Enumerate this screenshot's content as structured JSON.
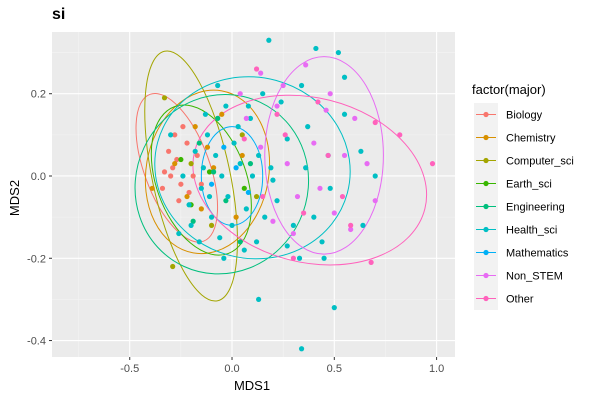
{
  "chart_data": {
    "type": "scatter",
    "title": "si",
    "xlabel": "MDS1",
    "ylabel": "MDS2",
    "xlim": [
      -0.88,
      1.09
    ],
    "ylim": [
      -0.44,
      0.35
    ],
    "x_ticks": [
      -0.5,
      0.0,
      0.5,
      1.0
    ],
    "x_tick_labels": [
      "-0.5",
      "0.0",
      "0.5",
      "1.0"
    ],
    "y_ticks": [
      -0.4,
      -0.2,
      0.0,
      0.2
    ],
    "y_tick_labels": [
      "-0.4",
      "-0.2",
      "0.0",
      "0.2"
    ],
    "grid": true,
    "legend_position": "right",
    "legend_title": "factor(major)",
    "colors": {
      "panel_bg": "#EBEBEB",
      "grid_major": "#FFFFFF",
      "grid_minor": "#F5F5F5"
    },
    "ellipses_shown": true,
    "series": [
      {
        "name": "Biology",
        "color": "#F8766D",
        "points": [
          [
            -0.31,
            0.06
          ],
          [
            -0.29,
            0.02
          ],
          [
            -0.27,
            0.04
          ],
          [
            -0.25,
            -0.02
          ],
          [
            -0.3,
            0.0
          ],
          [
            -0.22,
            0.08
          ],
          [
            -0.34,
            -0.03
          ],
          [
            -0.26,
            -0.06
          ],
          [
            -0.19,
            0.0
          ],
          [
            -0.28,
            0.1
          ],
          [
            -0.21,
            -0.04
          ],
          [
            -0.24,
            0.12
          ],
          [
            -0.33,
            0.01
          ],
          [
            -0.17,
            0.05
          ],
          [
            -0.15,
            -0.02
          ]
        ],
        "ellipse": {
          "cx": -0.27,
          "cy": 0.02,
          "rx": 0.16,
          "ry": 0.19,
          "angle": 20
        }
      },
      {
        "name": "Chemistry",
        "color": "#D89000",
        "points": [
          [
            -0.18,
            0.12
          ],
          [
            -0.12,
            0.07
          ],
          [
            -0.22,
            -0.05
          ],
          [
            -0.09,
            0.02
          ],
          [
            0.02,
            -0.1
          ],
          [
            -0.15,
            -0.08
          ],
          [
            0.05,
            0.05
          ],
          [
            -0.39,
            -0.03
          ],
          [
            -0.28,
            0.03
          ],
          [
            -0.05,
            0.15
          ]
        ],
        "ellipse": {
          "cx": -0.12,
          "cy": 0.01,
          "rx": 0.3,
          "ry": 0.2,
          "angle": -10
        }
      },
      {
        "name": "Computer_sci",
        "color": "#A3A500",
        "points": [
          [
            -0.33,
            0.19
          ],
          [
            -0.29,
            -0.22
          ],
          [
            -0.2,
            0.03
          ],
          [
            0.05,
            0.1
          ],
          [
            0.12,
            -0.05
          ],
          [
            -0.1,
            -0.12
          ]
        ],
        "ellipse": {
          "cx": -0.2,
          "cy": 0.0,
          "rx": 0.19,
          "ry": 0.31,
          "angle": 12
        }
      },
      {
        "name": "Earth_sci",
        "color": "#39B600",
        "points": [
          [
            -0.25,
            0.04
          ],
          [
            -0.2,
            -0.07
          ],
          [
            -0.11,
            0.01
          ],
          [
            0.06,
            -0.03
          ]
        ],
        "ellipse": {
          "cx": -0.15,
          "cy": -0.01,
          "rx": 0.22,
          "ry": 0.19,
          "angle": 20
        }
      },
      {
        "name": "Engineering",
        "color": "#00BF7D",
        "points": [
          [
            -0.16,
            0.08
          ],
          [
            -0.09,
            0.01
          ],
          [
            -0.03,
            -0.06
          ],
          [
            0.09,
            0.03
          ],
          [
            -0.19,
            -0.11
          ],
          [
            -0.07,
            0.14
          ],
          [
            0.04,
            -0.16
          ]
        ],
        "ellipse": {
          "cx": -0.05,
          "cy": -0.02,
          "rx": 0.42,
          "ry": 0.22,
          "angle": -25
        }
      },
      {
        "name": "Health_sci",
        "color": "#00BFC4",
        "points": [
          [
            -0.12,
            0.1
          ],
          [
            -0.08,
            0.05
          ],
          [
            -0.05,
            0.0
          ],
          [
            -0.02,
            -0.05
          ],
          [
            0.01,
            0.08
          ],
          [
            0.04,
            0.03
          ],
          [
            -0.15,
            -0.03
          ],
          [
            -0.18,
            0.06
          ],
          [
            0.07,
            -0.08
          ],
          [
            -0.1,
            -0.1
          ],
          [
            -0.06,
            -0.15
          ],
          [
            0.0,
            -0.12
          ],
          [
            0.03,
            0.12
          ],
          [
            -0.13,
            0.15
          ],
          [
            0.1,
            0.0
          ],
          [
            0.13,
            0.05
          ],
          [
            -0.21,
            -0.07
          ],
          [
            -0.24,
            0.0
          ],
          [
            0.06,
            -0.18
          ],
          [
            -0.03,
            0.17
          ],
          [
            0.16,
            -0.1
          ],
          [
            0.09,
            0.14
          ],
          [
            -0.16,
            -0.16
          ],
          [
            0.19,
            0.02
          ],
          [
            0.22,
            -0.06
          ],
          [
            0.12,
            -0.16
          ],
          [
            0.27,
            0.09
          ],
          [
            0.3,
            -0.12
          ],
          [
            0.36,
            0.02
          ],
          [
            0.4,
            -0.1
          ],
          [
            0.44,
            -0.16
          ],
          [
            0.48,
            -0.03
          ],
          [
            0.55,
            0.15
          ],
          [
            0.34,
            0.22
          ],
          [
            0.41,
            0.31
          ],
          [
            0.52,
            0.3
          ],
          [
            0.55,
            0.24
          ],
          [
            0.33,
            -0.2
          ],
          [
            0.45,
            -0.2
          ],
          [
            0.5,
            -0.32
          ],
          [
            0.34,
            -0.42
          ],
          [
            0.13,
            -0.3
          ],
          [
            0.18,
            0.33
          ],
          [
            0.63,
            0.06
          ],
          [
            0.7,
            0.0
          ],
          [
            0.64,
            -0.12
          ],
          [
            -0.26,
            -0.14
          ],
          [
            -0.07,
            0.22
          ],
          [
            0.24,
            0.18
          ],
          [
            -0.3,
            0.1
          ],
          [
            -0.04,
            -0.2
          ],
          [
            0.27,
            -0.17
          ],
          [
            0.15,
            0.2
          ],
          [
            0.37,
            0.12
          ],
          [
            0.47,
            0.05
          ],
          [
            0.2,
            -0.01
          ],
          [
            -0.11,
            -0.05
          ],
          [
            -0.2,
            -0.12
          ],
          [
            -0.14,
            0.02
          ],
          [
            0.08,
            0.17
          ]
        ],
        "ellipse": {
          "cx": 0.1,
          "cy": 0.02,
          "rx": 0.48,
          "ry": 0.22,
          "angle": -15
        }
      },
      {
        "name": "Mathematics",
        "color": "#00B0F6",
        "points": [
          [
            -0.1,
            -0.02
          ],
          [
            0.02,
            0.02
          ],
          [
            -0.04,
            0.07
          ],
          [
            0.08,
            -0.04
          ]
        ],
        "ellipse": {
          "cx": 0.0,
          "cy": 0.0,
          "rx": 0.15,
          "ry": 0.12,
          "angle": 0
        }
      },
      {
        "name": "Non_STEM",
        "color": "#E76BF3",
        "points": [
          [
            0.04,
            0.2
          ],
          [
            0.07,
            0.14
          ],
          [
            0.14,
            0.07
          ],
          [
            0.22,
            0.17
          ],
          [
            0.27,
            0.03
          ],
          [
            0.32,
            -0.05
          ],
          [
            0.4,
            0.08
          ],
          [
            0.46,
            0.16
          ],
          [
            0.55,
            0.05
          ],
          [
            0.6,
            0.14
          ],
          [
            0.66,
            0.03
          ],
          [
            0.7,
            -0.06
          ],
          [
            0.58,
            -0.13
          ],
          [
            0.5,
            -0.09
          ],
          [
            0.43,
            -0.03
          ],
          [
            0.3,
            -0.14
          ],
          [
            0.2,
            -0.11
          ],
          [
            0.14,
            0.25
          ],
          [
            0.25,
            0.22
          ],
          [
            0.36,
            0.27
          ],
          [
            0.48,
            0.2
          ]
        ],
        "ellipse": {
          "cx": 0.45,
          "cy": 0.05,
          "rx": 0.29,
          "ry": 0.24,
          "angle": 0
        }
      },
      {
        "name": "Other",
        "color": "#FF62BC",
        "points": [
          [
            0.98,
            0.03
          ],
          [
            0.82,
            0.1
          ],
          [
            0.68,
            -0.21
          ],
          [
            0.7,
            0.13
          ],
          [
            0.58,
            -0.12
          ],
          [
            0.47,
            0.05
          ],
          [
            0.35,
            -0.09
          ],
          [
            0.26,
            0.1
          ],
          [
            0.15,
            -0.05
          ],
          [
            0.06,
            0.09
          ],
          [
            0.12,
            0.26
          ],
          [
            0.3,
            -0.2
          ],
          [
            0.42,
            0.18
          ],
          [
            0.54,
            -0.05
          ],
          [
            0.22,
            0.15
          ]
        ],
        "ellipse": {
          "cx": 0.38,
          "cy": -0.01,
          "rx": 0.58,
          "ry": 0.2,
          "angle": -14
        }
      }
    ]
  }
}
